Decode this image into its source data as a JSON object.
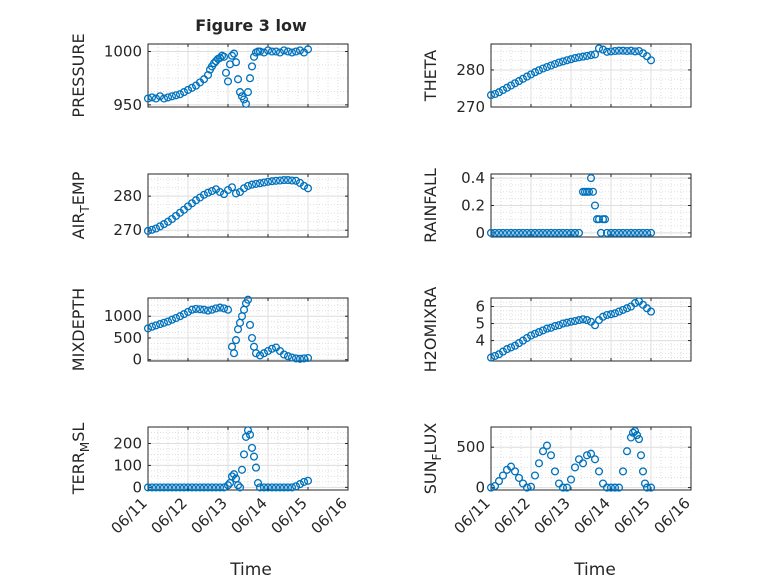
{
  "figure": {
    "title": "Figure 3 low",
    "xlabel_left": "Time",
    "xlabel_right": "Time",
    "x_ticks": [
      "06/11",
      "06/12",
      "06/13",
      "06/14",
      "06/15",
      "06/16"
    ],
    "marker_color": "#0072BD",
    "grid_color": "#dfdfdf"
  },
  "chart_data": [
    {
      "type": "scatter",
      "ylabel": "PRESSURE",
      "ylabel_sub": "",
      "ylabel_rest": "",
      "xlim": [
        0,
        5
      ],
      "ylim": [
        948,
        1007
      ],
      "yticks": [
        950,
        1000
      ],
      "grid": true,
      "x": [
        0.0,
        0.1,
        0.2,
        0.3,
        0.4,
        0.5,
        0.6,
        0.7,
        0.8,
        0.9,
        1.0,
        1.1,
        1.2,
        1.3,
        1.4,
        1.5,
        1.55,
        1.6,
        1.65,
        1.7,
        1.75,
        1.8,
        1.85,
        1.9,
        1.95,
        2.0,
        2.05,
        2.1,
        2.15,
        2.2,
        2.25,
        2.3,
        2.35,
        2.4,
        2.45,
        2.5,
        2.55,
        2.6,
        2.65,
        2.7,
        2.75,
        2.8,
        2.9,
        3.0,
        3.1,
        3.2,
        3.3,
        3.4,
        3.5,
        3.6,
        3.7,
        3.8,
        3.9,
        4.0
      ],
      "y": [
        956,
        957,
        956,
        958,
        956,
        957,
        958,
        959,
        960,
        962,
        964,
        966,
        968,
        971,
        974,
        978,
        983,
        986,
        989,
        991,
        993,
        994,
        996,
        995,
        980,
        972,
        988,
        996,
        998,
        990,
        974,
        962,
        958,
        955,
        951,
        962,
        975,
        986,
        995,
        999,
        1000,
        1000,
        999,
        1001,
        1000,
        1000,
        999,
        1001,
        1000,
        999,
        1000,
        1001,
        999,
        1002
      ]
    },
    {
      "type": "scatter",
      "ylabel": "THETA",
      "ylabel_sub": "",
      "ylabel_rest": "",
      "xlim": [
        0,
        5
      ],
      "ylim": [
        270,
        287
      ],
      "yticks": [
        270,
        280
      ],
      "grid": true,
      "x": [
        0.0,
        0.1,
        0.2,
        0.3,
        0.4,
        0.5,
        0.6,
        0.7,
        0.8,
        0.9,
        1.0,
        1.1,
        1.2,
        1.3,
        1.4,
        1.5,
        1.6,
        1.7,
        1.8,
        1.9,
        2.0,
        2.1,
        2.2,
        2.3,
        2.4,
        2.5,
        2.6,
        2.7,
        2.8,
        2.9,
        3.0,
        3.1,
        3.2,
        3.3,
        3.4,
        3.5,
        3.6,
        3.7,
        3.8,
        3.9,
        4.0
      ],
      "y": [
        273.2,
        273.5,
        274.0,
        274.6,
        275.2,
        275.8,
        276.4,
        277.0,
        277.6,
        278.2,
        278.8,
        279.4,
        279.9,
        280.4,
        280.8,
        281.2,
        281.6,
        282.0,
        282.3,
        282.6,
        282.9,
        283.2,
        283.4,
        283.6,
        283.8,
        284.0,
        284.2,
        285.8,
        285.5,
        284.9,
        285.0,
        285.1,
        285.2,
        285.2,
        285.1,
        285.2,
        285.0,
        285.1,
        284.5,
        283.7,
        282.6
      ]
    },
    {
      "type": "scatter",
      "ylabel": "AIR",
      "ylabel_sub": "T",
      "ylabel_rest": "EMP",
      "xlim": [
        0,
        5
      ],
      "ylim": [
        268,
        286.5
      ],
      "yticks": [
        270,
        280
      ],
      "grid": true,
      "x": [
        0.0,
        0.1,
        0.2,
        0.3,
        0.4,
        0.5,
        0.6,
        0.7,
        0.8,
        0.9,
        1.0,
        1.1,
        1.2,
        1.3,
        1.4,
        1.5,
        1.6,
        1.7,
        1.8,
        1.9,
        2.0,
        2.1,
        2.2,
        2.3,
        2.4,
        2.5,
        2.6,
        2.7,
        2.8,
        2.9,
        3.0,
        3.1,
        3.2,
        3.3,
        3.4,
        3.5,
        3.6,
        3.7,
        3.8,
        3.9,
        4.0
      ],
      "y": [
        269.8,
        270.1,
        270.5,
        271.1,
        271.8,
        272.5,
        273.3,
        274.2,
        275.1,
        276.0,
        277.0,
        277.9,
        278.8,
        279.6,
        280.4,
        281.0,
        281.5,
        282.0,
        281.2,
        280.6,
        281.8,
        282.6,
        280.8,
        281.2,
        282.3,
        283.0,
        283.4,
        283.6,
        283.8,
        284.0,
        284.2,
        284.4,
        284.5,
        284.6,
        284.7,
        284.7,
        284.6,
        284.5,
        283.9,
        283.0,
        282.3
      ]
    },
    {
      "type": "scatter",
      "ylabel": "RAINFALL",
      "ylabel_sub": "",
      "ylabel_rest": "",
      "xlim": [
        0,
        5
      ],
      "ylim": [
        -0.03,
        0.43
      ],
      "yticks": [
        0,
        0.2,
        0.4
      ],
      "grid": true,
      "x": [
        0.0,
        0.1,
        0.2,
        0.3,
        0.4,
        0.5,
        0.6,
        0.7,
        0.8,
        0.9,
        1.0,
        1.1,
        1.2,
        1.3,
        1.4,
        1.5,
        1.6,
        1.7,
        1.8,
        1.9,
        2.0,
        2.1,
        2.2,
        2.3,
        2.35,
        2.4,
        2.45,
        2.5,
        2.55,
        2.6,
        2.65,
        2.7,
        2.75,
        2.8,
        2.85,
        2.9,
        3.0,
        3.1,
        3.2,
        3.3,
        3.4,
        3.5,
        3.6,
        3.7,
        3.8,
        3.9,
        4.0
      ],
      "y": [
        0,
        0,
        0,
        0,
        0,
        0,
        0,
        0,
        0,
        0,
        0,
        0,
        0,
        0,
        0,
        0,
        0,
        0,
        0,
        0,
        0,
        0,
        0,
        0.3,
        0.3,
        0.3,
        0.3,
        0.4,
        0.3,
        0.2,
        0.1,
        0.1,
        0,
        0.1,
        0.1,
        0,
        0,
        0,
        0,
        0,
        0,
        0,
        0,
        0,
        0,
        0,
        0
      ]
    },
    {
      "type": "scatter",
      "ylabel": "MIXDEPTH",
      "ylabel_sub": "",
      "ylabel_rest": "",
      "xlim": [
        0,
        5
      ],
      "ylim": [
        -30,
        1420
      ],
      "yticks": [
        0,
        500,
        1000
      ],
      "grid": true,
      "x": [
        0.0,
        0.1,
        0.2,
        0.3,
        0.4,
        0.5,
        0.6,
        0.7,
        0.8,
        0.9,
        1.0,
        1.1,
        1.2,
        1.3,
        1.4,
        1.5,
        1.6,
        1.7,
        1.8,
        1.9,
        2.0,
        2.1,
        2.15,
        2.2,
        2.25,
        2.3,
        2.35,
        2.4,
        2.45,
        2.5,
        2.55,
        2.6,
        2.65,
        2.7,
        2.8,
        2.9,
        3.0,
        3.1,
        3.2,
        3.3,
        3.4,
        3.5,
        3.6,
        3.7,
        3.8,
        3.9,
        4.0
      ],
      "y": [
        720,
        760,
        790,
        820,
        850,
        880,
        920,
        960,
        1000,
        1050,
        1100,
        1150,
        1170,
        1160,
        1150,
        1130,
        1150,
        1180,
        1200,
        1180,
        1150,
        300,
        150,
        450,
        700,
        850,
        1000,
        1150,
        1300,
        1380,
        800,
        500,
        300,
        150,
        100,
        150,
        200,
        250,
        280,
        200,
        120,
        80,
        50,
        30,
        20,
        30,
        40
      ]
    },
    {
      "type": "scatter",
      "ylabel": "H2OMIXRA",
      "ylabel_sub": "",
      "ylabel_rest": "",
      "xlim": [
        0,
        5
      ],
      "ylim": [
        2.8,
        6.5
      ],
      "yticks": [
        4,
        5,
        6
      ],
      "grid": true,
      "x": [
        0.0,
        0.1,
        0.2,
        0.3,
        0.4,
        0.5,
        0.6,
        0.7,
        0.8,
        0.9,
        1.0,
        1.1,
        1.2,
        1.3,
        1.4,
        1.5,
        1.6,
        1.7,
        1.8,
        1.9,
        2.0,
        2.1,
        2.2,
        2.3,
        2.4,
        2.5,
        2.6,
        2.7,
        2.8,
        2.9,
        3.0,
        3.1,
        3.2,
        3.3,
        3.4,
        3.5,
        3.6,
        3.7,
        3.8,
        3.9,
        4.0
      ],
      "y": [
        3.0,
        3.1,
        3.2,
        3.35,
        3.5,
        3.6,
        3.7,
        3.85,
        4.0,
        4.15,
        4.3,
        4.4,
        4.5,
        4.6,
        4.7,
        4.75,
        4.85,
        4.9,
        5.0,
        5.05,
        5.1,
        5.15,
        5.2,
        5.25,
        5.2,
        5.1,
        4.9,
        5.2,
        5.4,
        5.5,
        5.55,
        5.6,
        5.7,
        5.8,
        5.9,
        6.0,
        6.2,
        6.3,
        6.1,
        5.9,
        5.7
      ]
    },
    {
      "type": "scatter",
      "ylabel": "TERR",
      "ylabel_sub": "M",
      "ylabel_rest": "SL",
      "xlim": [
        0,
        5
      ],
      "ylim": [
        -12,
        275
      ],
      "yticks": [
        0,
        100,
        200
      ],
      "grid": true,
      "x": [
        0.0,
        0.1,
        0.2,
        0.3,
        0.4,
        0.5,
        0.6,
        0.7,
        0.8,
        0.9,
        1.0,
        1.1,
        1.2,
        1.3,
        1.4,
        1.5,
        1.6,
        1.7,
        1.8,
        1.9,
        2.0,
        2.05,
        2.1,
        2.15,
        2.2,
        2.25,
        2.3,
        2.35,
        2.4,
        2.45,
        2.5,
        2.55,
        2.6,
        2.65,
        2.7,
        2.75,
        2.8,
        2.9,
        3.0,
        3.1,
        3.2,
        3.3,
        3.4,
        3.5,
        3.6,
        3.7,
        3.8,
        3.9,
        4.0
      ],
      "y": [
        0,
        0,
        0,
        0,
        0,
        0,
        0,
        0,
        0,
        0,
        0,
        0,
        0,
        0,
        0,
        0,
        0,
        0,
        0,
        0,
        10,
        20,
        50,
        60,
        40,
        10,
        0,
        80,
        150,
        230,
        260,
        240,
        180,
        140,
        90,
        20,
        0,
        0,
        0,
        0,
        0,
        0,
        0,
        0,
        0,
        5,
        15,
        25,
        30
      ]
    },
    {
      "type": "scatter",
      "ylabel": "SUN",
      "ylabel_sub": "F",
      "ylabel_rest": "LUX",
      "xlim": [
        0,
        5
      ],
      "ylim": [
        -30,
        750
      ],
      "yticks": [
        0,
        500
      ],
      "grid": true,
      "x": [
        0.0,
        0.1,
        0.2,
        0.3,
        0.4,
        0.5,
        0.6,
        0.7,
        0.8,
        0.9,
        1.0,
        1.1,
        1.2,
        1.3,
        1.4,
        1.5,
        1.6,
        1.7,
        1.8,
        1.9,
        2.0,
        2.1,
        2.2,
        2.3,
        2.4,
        2.5,
        2.6,
        2.7,
        2.8,
        2.9,
        3.0,
        3.1,
        3.2,
        3.3,
        3.4,
        3.5,
        3.55,
        3.6,
        3.65,
        3.7,
        3.75,
        3.8,
        3.85,
        3.9,
        4.0
      ],
      "y": [
        0,
        20,
        80,
        150,
        220,
        260,
        200,
        120,
        50,
        0,
        10,
        150,
        300,
        450,
        520,
        400,
        200,
        50,
        0,
        0,
        100,
        250,
        350,
        300,
        400,
        420,
        350,
        200,
        50,
        0,
        0,
        0,
        0,
        200,
        450,
        620,
        680,
        700,
        650,
        600,
        400,
        200,
        50,
        0,
        0
      ]
    }
  ]
}
